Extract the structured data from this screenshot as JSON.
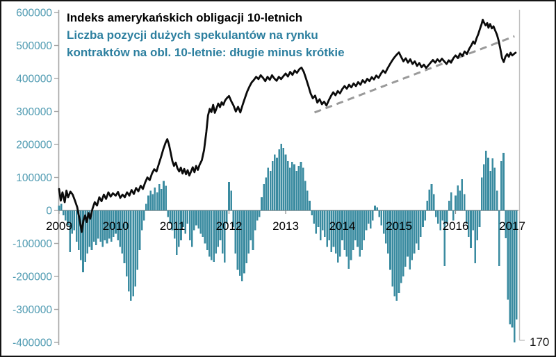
{
  "title": {
    "line1": "Indeks amerykańskich obligacji 10-letnich",
    "line2": "Liczba pozycji dużych spekulantów na rynku",
    "line3": "kontraktów na obl. 10-letnie: długie minus krótkie"
  },
  "colors": {
    "title_black": "#000000",
    "title_teal": "#2c7f9f",
    "bar_fill": "#3a8ba0",
    "line_stroke": "#0b0b0b",
    "trendline": "#9a9a9a",
    "y_label": "#4e9ab1",
    "x_label": "#000000",
    "left_axis": "#a6a6a6",
    "right_axis": "#c0c0c0",
    "zero_line": "#8c8c8c",
    "background": "#ffffff",
    "border": "#141414"
  },
  "right_axis_label": "170",
  "chart_data": {
    "type": [
      "line",
      "bar"
    ],
    "title": "Indeks amerykańskich obligacji 10-letnich",
    "subtitle": "Liczba pozycji dużych spekulantów na rynku kontraktów na obl. 10-letnie: długie minus krótkie",
    "y_axis": {
      "min": -400000,
      "max": 600000,
      "tick_step": 100000,
      "tick_labels": [
        "600000",
        "500000",
        "400000",
        "300000",
        "200000",
        "100000",
        "0",
        "-100000",
        "-200000",
        "-300000",
        "-400000"
      ],
      "tick_values": [
        600000,
        500000,
        400000,
        300000,
        200000,
        100000,
        0,
        -100000,
        -200000,
        -300000,
        -400000
      ],
      "grid": false
    },
    "x_axis": {
      "tick_labels": [
        "2009",
        "2010",
        "2011",
        "2012",
        "2013",
        "2014",
        "2015",
        "2016",
        "2017"
      ],
      "tick_values": [
        2009,
        2010,
        2011,
        2012,
        2013,
        2014,
        2015,
        2016,
        2017
      ],
      "min": 2009.0,
      "max": 2017.12
    },
    "legend": "none",
    "line_series": {
      "name": "Indeks amerykańskich obligacji 10-letnich",
      "points": [
        [
          2009.0,
          65000
        ],
        [
          2009.03,
          30000
        ],
        [
          2009.06,
          55000
        ],
        [
          2009.1,
          25000
        ],
        [
          2009.13,
          60000
        ],
        [
          2009.16,
          40000
        ],
        [
          2009.2,
          57000
        ],
        [
          2009.24,
          48000
        ],
        [
          2009.28,
          30000
        ],
        [
          2009.32,
          10000
        ],
        [
          2009.36,
          -25000
        ],
        [
          2009.4,
          -65000
        ],
        [
          2009.43,
          -30000
        ],
        [
          2009.46,
          -15000
        ],
        [
          2009.49,
          -35000
        ],
        [
          2009.52,
          -8000
        ],
        [
          2009.55,
          -25000
        ],
        [
          2009.59,
          5000
        ],
        [
          2009.63,
          25000
        ],
        [
          2009.67,
          15000
        ],
        [
          2009.71,
          40000
        ],
        [
          2009.75,
          28000
        ],
        [
          2009.79,
          48000
        ],
        [
          2009.83,
          35000
        ],
        [
          2009.87,
          55000
        ],
        [
          2009.91,
          42000
        ],
        [
          2009.95,
          52000
        ],
        [
          2010.0,
          45000
        ],
        [
          2010.04,
          56000
        ],
        [
          2010.08,
          38000
        ],
        [
          2010.12,
          48000
        ],
        [
          2010.16,
          40000
        ],
        [
          2010.2,
          55000
        ],
        [
          2010.24,
          45000
        ],
        [
          2010.28,
          62000
        ],
        [
          2010.32,
          50000
        ],
        [
          2010.36,
          68000
        ],
        [
          2010.4,
          58000
        ],
        [
          2010.44,
          75000
        ],
        [
          2010.48,
          65000
        ],
        [
          2010.52,
          85000
        ],
        [
          2010.56,
          100000
        ],
        [
          2010.6,
          92000
        ],
        [
          2010.64,
          112000
        ],
        [
          2010.68,
          125000
        ],
        [
          2010.72,
          118000
        ],
        [
          2010.76,
          140000
        ],
        [
          2010.8,
          162000
        ],
        [
          2010.84,
          186000
        ],
        [
          2010.88,
          205000
        ],
        [
          2010.91,
          216000
        ],
        [
          2010.94,
          200000
        ],
        [
          2010.97,
          175000
        ],
        [
          2011.0,
          150000
        ],
        [
          2011.03,
          135000
        ],
        [
          2011.06,
          145000
        ],
        [
          2011.09,
          128000
        ],
        [
          2011.12,
          118000
        ],
        [
          2011.15,
          130000
        ],
        [
          2011.18,
          112000
        ],
        [
          2011.21,
          126000
        ],
        [
          2011.24,
          110000
        ],
        [
          2011.27,
          122000
        ],
        [
          2011.3,
          106000
        ],
        [
          2011.33,
          118000
        ],
        [
          2011.36,
          131000
        ],
        [
          2011.39,
          116000
        ],
        [
          2011.42,
          135000
        ],
        [
          2011.45,
          123000
        ],
        [
          2011.48,
          138000
        ],
        [
          2011.52,
          152000
        ],
        [
          2011.56,
          183000
        ],
        [
          2011.6,
          238000
        ],
        [
          2011.63,
          288000
        ],
        [
          2011.66,
          308000
        ],
        [
          2011.69,
          298000
        ],
        [
          2011.72,
          320000
        ],
        [
          2011.75,
          296000
        ],
        [
          2011.78,
          310000
        ],
        [
          2011.81,
          324000
        ],
        [
          2011.84,
          313000
        ],
        [
          2011.87,
          328000
        ],
        [
          2011.9,
          320000
        ],
        [
          2011.93,
          333000
        ],
        [
          2011.96,
          340000
        ],
        [
          2012.0,
          347000
        ],
        [
          2012.04,
          331000
        ],
        [
          2012.08,
          318000
        ],
        [
          2012.12,
          300000
        ],
        [
          2012.16,
          314000
        ],
        [
          2012.2,
          297000
        ],
        [
          2012.24,
          320000
        ],
        [
          2012.28,
          340000
        ],
        [
          2012.32,
          360000
        ],
        [
          2012.36,
          375000
        ],
        [
          2012.4,
          388000
        ],
        [
          2012.44,
          396000
        ],
        [
          2012.48,
          405000
        ],
        [
          2012.52,
          398000
        ],
        [
          2012.56,
          410000
        ],
        [
          2012.6,
          402000
        ],
        [
          2012.64,
          392000
        ],
        [
          2012.68,
          405000
        ],
        [
          2012.72,
          396000
        ],
        [
          2012.76,
          410000
        ],
        [
          2012.8,
          400000
        ],
        [
          2012.84,
          393000
        ],
        [
          2012.88,
          405000
        ],
        [
          2012.92,
          398000
        ],
        [
          2012.96,
          407000
        ],
        [
          2013.0,
          415000
        ],
        [
          2013.04,
          406000
        ],
        [
          2013.08,
          420000
        ],
        [
          2013.12,
          411000
        ],
        [
          2013.16,
          424000
        ],
        [
          2013.2,
          417000
        ],
        [
          2013.24,
          428000
        ],
        [
          2013.28,
          433000
        ],
        [
          2013.32,
          420000
        ],
        [
          2013.36,
          400000
        ],
        [
          2013.4,
          378000
        ],
        [
          2013.44,
          355000
        ],
        [
          2013.48,
          340000
        ],
        [
          2013.52,
          348000
        ],
        [
          2013.56,
          327000
        ],
        [
          2013.6,
          337000
        ],
        [
          2013.64,
          322000
        ],
        [
          2013.68,
          330000
        ],
        [
          2013.72,
          318000
        ],
        [
          2013.76,
          333000
        ],
        [
          2013.8,
          347000
        ],
        [
          2013.84,
          358000
        ],
        [
          2013.88,
          349000
        ],
        [
          2013.92,
          362000
        ],
        [
          2013.96,
          355000
        ],
        [
          2014.0,
          368000
        ],
        [
          2014.04,
          377000
        ],
        [
          2014.08,
          369000
        ],
        [
          2014.12,
          381000
        ],
        [
          2014.16,
          373000
        ],
        [
          2014.2,
          385000
        ],
        [
          2014.24,
          377000
        ],
        [
          2014.28,
          389000
        ],
        [
          2014.32,
          381000
        ],
        [
          2014.36,
          395000
        ],
        [
          2014.4,
          387000
        ],
        [
          2014.44,
          399000
        ],
        [
          2014.48,
          392000
        ],
        [
          2014.52,
          404000
        ],
        [
          2014.56,
          397000
        ],
        [
          2014.6,
          409000
        ],
        [
          2014.64,
          402000
        ],
        [
          2014.68,
          414000
        ],
        [
          2014.72,
          424000
        ],
        [
          2014.76,
          417000
        ],
        [
          2014.8,
          431000
        ],
        [
          2014.84,
          443000
        ],
        [
          2014.88,
          454000
        ],
        [
          2014.92,
          464000
        ],
        [
          2014.96,
          472000
        ],
        [
          2015.0,
          479000
        ],
        [
          2015.04,
          465000
        ],
        [
          2015.08,
          452000
        ],
        [
          2015.12,
          461000
        ],
        [
          2015.16,
          448000
        ],
        [
          2015.2,
          458000
        ],
        [
          2015.24,
          444000
        ],
        [
          2015.28,
          452000
        ],
        [
          2015.32,
          438000
        ],
        [
          2015.36,
          447000
        ],
        [
          2015.4,
          434000
        ],
        [
          2015.44,
          442000
        ],
        [
          2015.48,
          432000
        ],
        [
          2015.52,
          440000
        ],
        [
          2015.56,
          448000
        ],
        [
          2015.6,
          456000
        ],
        [
          2015.64,
          448000
        ],
        [
          2015.68,
          458000
        ],
        [
          2015.72,
          451000
        ],
        [
          2015.76,
          460000
        ],
        [
          2015.8,
          452000
        ],
        [
          2015.84,
          444000
        ],
        [
          2015.88,
          455000
        ],
        [
          2015.92,
          448000
        ],
        [
          2015.96,
          461000
        ],
        [
          2016.0,
          470000
        ],
        [
          2016.04,
          462000
        ],
        [
          2016.08,
          476000
        ],
        [
          2016.12,
          468000
        ],
        [
          2016.16,
          482000
        ],
        [
          2016.2,
          474000
        ],
        [
          2016.24,
          490000
        ],
        [
          2016.28,
          501000
        ],
        [
          2016.31,
          512000
        ],
        [
          2016.34,
          505000
        ],
        [
          2016.37,
          522000
        ],
        [
          2016.4,
          534000
        ],
        [
          2016.43,
          550000
        ],
        [
          2016.46,
          565000
        ],
        [
          2016.48,
          578000
        ],
        [
          2016.5,
          570000
        ],
        [
          2016.53,
          561000
        ],
        [
          2016.56,
          568000
        ],
        [
          2016.58,
          554000
        ],
        [
          2016.61,
          565000
        ],
        [
          2016.64,
          552000
        ],
        [
          2016.67,
          558000
        ],
        [
          2016.7,
          545000
        ],
        [
          2016.73,
          533000
        ],
        [
          2016.76,
          515000
        ],
        [
          2016.79,
          490000
        ],
        [
          2016.82,
          462000
        ],
        [
          2016.85,
          450000
        ],
        [
          2016.88,
          466000
        ],
        [
          2016.91,
          474000
        ],
        [
          2016.94,
          466000
        ],
        [
          2016.97,
          478000
        ],
        [
          2017.0,
          470000
        ],
        [
          2017.03,
          474000
        ],
        [
          2017.06,
          478000
        ]
      ]
    },
    "bar_series": {
      "name": "Liczba pozycji dużych spekulantów na rynku kontraktów na obl. 10-letnie: długie minus krótkie",
      "t_start": 2009.0,
      "t_step": 0.038462,
      "values": [
        15000,
        20000,
        -15000,
        -30000,
        -45000,
        -126000,
        -70000,
        -60000,
        -95000,
        -120000,
        -150000,
        -187000,
        -156000,
        -130000,
        -110000,
        -120000,
        -95000,
        -105000,
        -85000,
        -95000,
        -110000,
        -90000,
        -100000,
        -85000,
        -95000,
        -80000,
        -70000,
        -90000,
        -110000,
        -130000,
        -160000,
        -200000,
        -245000,
        -274000,
        -260000,
        -230000,
        -180000,
        -120000,
        -60000,
        -30000,
        20000,
        45000,
        60000,
        50000,
        70000,
        55000,
        80000,
        65000,
        90000,
        75000,
        -20000,
        -40000,
        -60000,
        -85000,
        -135000,
        -110000,
        -90000,
        -50000,
        -70000,
        -40000,
        -90000,
        -110000,
        -60000,
        -45000,
        -55000,
        -70000,
        -80000,
        -100000,
        -120000,
        -140000,
        -150000,
        -156000,
        -130000,
        -110000,
        -90000,
        -130000,
        -158000,
        -40000,
        86000,
        60000,
        -50000,
        -130000,
        -180000,
        -198000,
        -215000,
        -190000,
        -160000,
        -130000,
        -90000,
        -120000,
        -60000,
        -30000,
        -20000,
        40000,
        80000,
        100000,
        130000,
        120000,
        150000,
        170000,
        160000,
        185000,
        202000,
        190000,
        170000,
        150000,
        130000,
        147000,
        140000,
        120000,
        135000,
        147000,
        130000,
        90000,
        60000,
        30000,
        -15000,
        -40000,
        -70000,
        -50000,
        -90000,
        -60000,
        -80000,
        -110000,
        -90000,
        -126000,
        -110000,
        -130000,
        -158000,
        -140000,
        -90000,
        -120000,
        -140000,
        -177000,
        -150000,
        -120000,
        -90000,
        -110000,
        -140000,
        -120000,
        -90000,
        -60000,
        -40000,
        -55000,
        -30000,
        15000,
        10000,
        -20000,
        -45000,
        -70000,
        -100000,
        -130000,
        -180000,
        -230000,
        -260000,
        -274000,
        -250000,
        -220000,
        -200000,
        -170000,
        -140000,
        -179000,
        -150000,
        -130000,
        -100000,
        -120000,
        -80000,
        -50000,
        -30000,
        30000,
        63000,
        80000,
        50000,
        -20000,
        -40000,
        -60000,
        -30000,
        -168000,
        -40000,
        30000,
        55000,
        -30000,
        45000,
        76000,
        60000,
        95000,
        50000,
        -40000,
        -80000,
        -114000,
        -60000,
        -160000,
        -90000,
        -50000,
        100000,
        140000,
        181000,
        160000,
        120000,
        158000,
        130000,
        60000,
        -168000,
        150000,
        175000,
        -84000,
        -270000,
        -345000,
        -355000,
        -400000,
        -330000
      ]
    },
    "trendline": {
      "style": "dashed",
      "from": [
        2013.51,
        297000
      ],
      "to": [
        2017.04,
        528000
      ]
    }
  }
}
